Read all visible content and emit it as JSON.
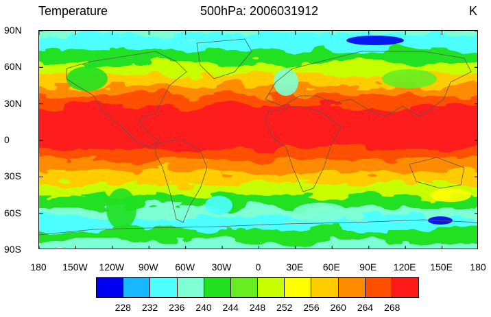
{
  "titles": {
    "left": "Temperature",
    "center": "500hPa: 2006031912",
    "right": "K"
  },
  "lat_ticks": [
    "90N",
    "60N",
    "30N",
    "0",
    "30S",
    "60S",
    "90S"
  ],
  "lon_ticks": [
    "180",
    "150W",
    "120W",
    "90W",
    "60W",
    "30W",
    "0",
    "30E",
    "60E",
    "90E",
    "120E",
    "150E",
    "180"
  ],
  "colorbar": {
    "labels": [
      "228",
      "232",
      "236",
      "240",
      "244",
      "248",
      "252",
      "256",
      "260",
      "264",
      "268"
    ],
    "colors": [
      "#0000f0",
      "#17b8ff",
      "#4dffff",
      "#7fffd4",
      "#20e020",
      "#66ee22",
      "#c8ff00",
      "#ffff00",
      "#ffcc00",
      "#ff8c00",
      "#ff5000",
      "#ff1a1a"
    ]
  }
}
